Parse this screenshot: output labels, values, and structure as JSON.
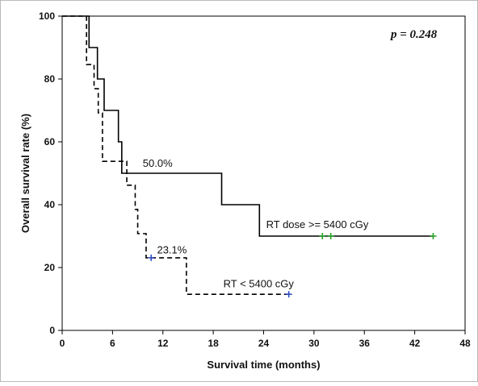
{
  "chart_data": {
    "type": "line",
    "subtype": "kaplan-meier",
    "title": "",
    "xlabel": "Survival time (months)",
    "ylabel": "Overall survival rate (%)",
    "xlim": [
      0,
      48
    ],
    "ylim": [
      0,
      100
    ],
    "xticks": [
      "0",
      "6",
      "12",
      "18",
      "24",
      "30",
      "36",
      "42",
      "48"
    ],
    "yticks": [
      "0",
      "20",
      "40",
      "60",
      "80",
      "100"
    ],
    "grid": false,
    "legend": "none",
    "series": [
      {
        "name": "RT dose >= 5400 cGy",
        "line_style": "solid",
        "color": "#000000",
        "censor_color": "#2ca02c",
        "steps": [
          {
            "x": 0,
            "y": 100
          },
          {
            "x": 3.2,
            "y": 90
          },
          {
            "x": 4.2,
            "y": 80
          },
          {
            "x": 5.0,
            "y": 70
          },
          {
            "x": 6.7,
            "y": 60
          },
          {
            "x": 7.1,
            "y": 50
          },
          {
            "x": 19.0,
            "y": 40
          },
          {
            "x": 23.5,
            "y": 30
          }
        ],
        "end_x": 44.2,
        "censored": [
          {
            "x": 31.0,
            "y": 30
          },
          {
            "x": 32.0,
            "y": 30
          },
          {
            "x": 44.2,
            "y": 30
          }
        ]
      },
      {
        "name": "RT < 5400 cGy",
        "line_style": "dashed",
        "color": "#000000",
        "censor_color": "#3050c0",
        "steps": [
          {
            "x": 0,
            "y": 100
          },
          {
            "x": 2.9,
            "y": 84.6
          },
          {
            "x": 3.8,
            "y": 76.9
          },
          {
            "x": 4.3,
            "y": 69.2
          },
          {
            "x": 4.8,
            "y": 53.8
          },
          {
            "x": 7.7,
            "y": 46.2
          },
          {
            "x": 8.7,
            "y": 38.5
          },
          {
            "x": 9.0,
            "y": 30.8
          },
          {
            "x": 10.0,
            "y": 23.1
          },
          {
            "x": 14.8,
            "y": 11.5
          }
        ],
        "end_x": 27.0,
        "censored": [
          {
            "x": 10.6,
            "y": 23.1
          },
          {
            "x": 27.0,
            "y": 11.5
          }
        ]
      }
    ],
    "annotations": [
      {
        "text": "50.0%",
        "x": 9.6,
        "y": 52
      },
      {
        "text": "23.1%",
        "x": 11.3,
        "y": 24.5
      },
      {
        "text": "RT dose >= 5400 cGy",
        "x": 24.3,
        "y": 32.6
      },
      {
        "text": "RT < 5400 cGy",
        "x": 19.2,
        "y": 13.7
      }
    ],
    "pvalue": "p = 0.248"
  }
}
